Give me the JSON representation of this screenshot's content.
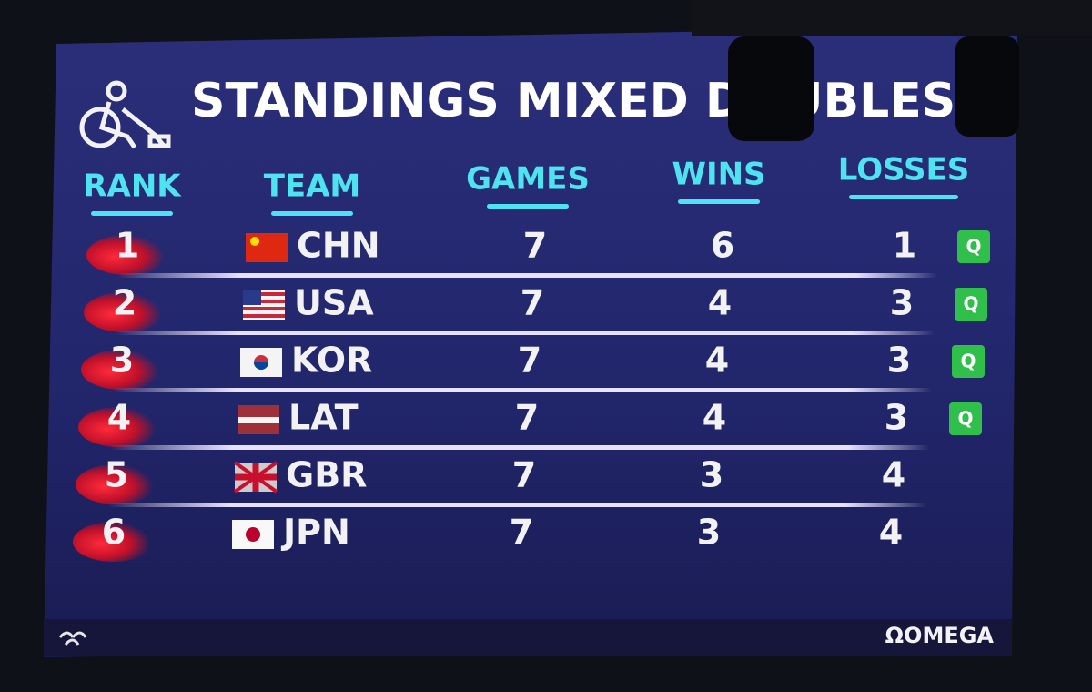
{
  "header": {
    "title": "STANDINGS MIXED DOUBLES"
  },
  "table": {
    "columns": [
      "RANK",
      "TEAM",
      "GAMES",
      "WINS",
      "LOSSES"
    ],
    "rows": [
      {
        "rank": "1",
        "team": "CHN",
        "games": "7",
        "wins": "6",
        "losses": "1",
        "status": "Q"
      },
      {
        "rank": "2",
        "team": "USA",
        "games": "7",
        "wins": "4",
        "losses": "3",
        "status": "Q"
      },
      {
        "rank": "3",
        "team": "KOR",
        "games": "7",
        "wins": "4",
        "losses": "3",
        "status": "Q"
      },
      {
        "rank": "4",
        "team": "LAT",
        "games": "7",
        "wins": "4",
        "losses": "3",
        "status": "Q"
      },
      {
        "rank": "5",
        "team": "GBR",
        "games": "7",
        "wins": "3",
        "losses": "4"
      },
      {
        "rank": "6",
        "team": "JPN",
        "games": "7",
        "wins": "3",
        "losses": "4"
      }
    ]
  },
  "footer": {
    "sponsor": "ΩOMEGA"
  }
}
